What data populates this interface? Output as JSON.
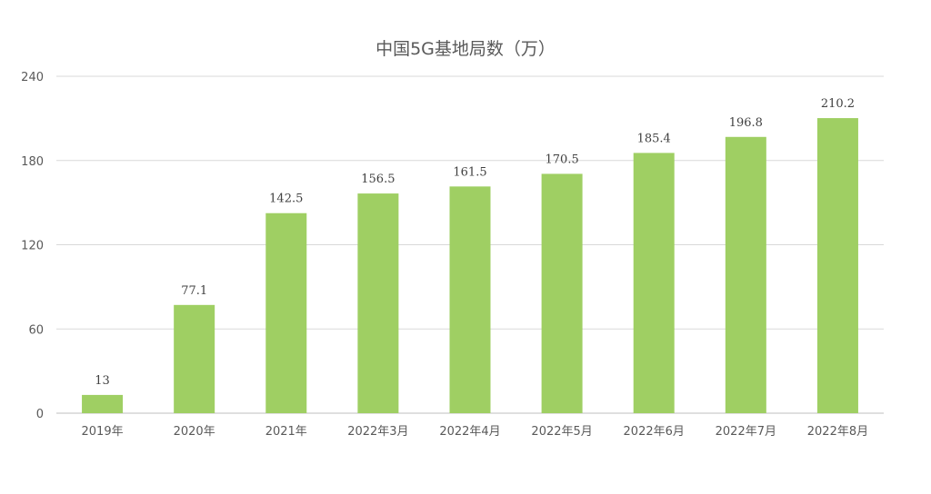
{
  "chart_data": {
    "type": "bar",
    "title": "中国5G基地局数（万）",
    "xlabel": "",
    "ylabel": "",
    "categories": [
      "2019年",
      "2020年",
      "2021年",
      "2022年3月",
      "2022年4月",
      "2022年5月",
      "2022年6月",
      "2022年7月",
      "2022年8月"
    ],
    "values": [
      13,
      77.1,
      142.5,
      156.5,
      161.5,
      170.5,
      185.4,
      196.8,
      210.2
    ],
    "data_labels": [
      "13",
      "77.1",
      "142.5",
      "156.5",
      "161.5",
      "170.5",
      "185.4",
      "196.8",
      "210.2"
    ],
    "ylim": [
      0,
      240
    ],
    "yticks": [
      "0",
      "60",
      "120",
      "180",
      "240"
    ],
    "grid": true,
    "legend": "none",
    "colors": {
      "bar": "#9fcf63",
      "grid": "#d9d9d9",
      "axis": "#bfbfbf",
      "text": "#595959"
    }
  }
}
